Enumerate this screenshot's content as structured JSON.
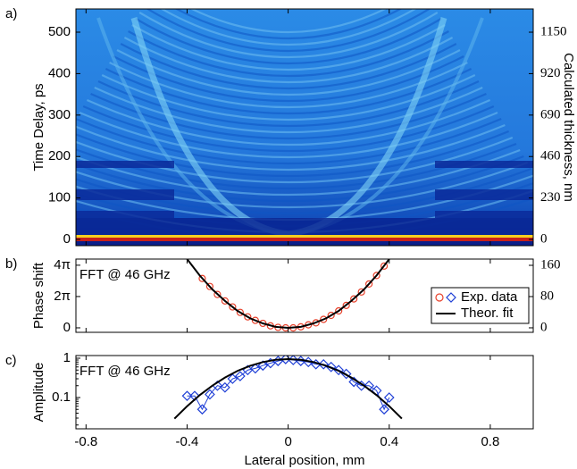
{
  "chart_data": [
    {
      "type": "heatmap",
      "panel_label": "a)",
      "ylabel": "Time Delay, ps",
      "y2label": "Calculated thickness, nm",
      "xlim": [
        -0.84,
        0.97
      ],
      "ylim": [
        -15,
        556
      ],
      "yticks": [
        0,
        100,
        200,
        300,
        400,
        500
      ],
      "y2lim": [
        -34.5,
        1279
      ],
      "y2ticks": [
        0,
        230,
        460,
        690,
        920,
        1150
      ]
    },
    {
      "type": "scatter",
      "panel_label": "b)",
      "annotation": "FFT @ 46 GHz",
      "ylabel": "Phase shift",
      "xlim": [
        -0.84,
        0.97
      ],
      "ylim": [
        -0.9,
        13.8
      ],
      "yticks": [
        0,
        {
          "value": 6.283,
          "label": "2π"
        },
        {
          "value": 12.566,
          "label": "4π"
        }
      ],
      "y2lim": [
        -11.5,
        176
      ],
      "y2ticks": [
        0,
        80,
        160
      ],
      "legend": "right",
      "series": [
        {
          "name": "Exp. data",
          "color": "#e8402a",
          "marker": "circle",
          "line": false,
          "x": [
            -0.34,
            -0.31,
            -0.28,
            -0.25,
            -0.22,
            -0.19,
            -0.16,
            -0.13,
            -0.1,
            -0.07,
            -0.04,
            -0.01,
            0.02,
            0.05,
            0.08,
            0.11,
            0.14,
            0.17,
            0.2,
            0.23,
            0.26,
            0.29,
            0.32,
            0.35,
            0.38
          ],
          "values": [
            9.9,
            8.3,
            6.7,
            5.4,
            4.2,
            3.1,
            2.2,
            1.5,
            0.9,
            0.4,
            0.1,
            0,
            0,
            0.2,
            0.6,
            1.0,
            1.7,
            2.5,
            3.4,
            4.5,
            5.8,
            7.2,
            8.8,
            10.5,
            12.4
          ]
        },
        {
          "name": "Theor. fit",
          "color": "#000000",
          "marker": "none",
          "line": true,
          "x": [
            -0.4,
            -0.35,
            -0.3,
            -0.25,
            -0.2,
            -0.15,
            -0.1,
            -0.05,
            0,
            0.05,
            0.1,
            0.15,
            0.2,
            0.25,
            0.3,
            0.35,
            0.4
          ],
          "values": [
            13.8,
            10.5,
            7.7,
            5.4,
            3.4,
            1.9,
            0.9,
            0.2,
            0,
            0.2,
            0.9,
            1.9,
            3.4,
            5.4,
            7.7,
            10.5,
            13.8
          ]
        }
      ]
    },
    {
      "type": "scatter",
      "panel_label": "c)",
      "annotation": "FFT @ 46 GHz",
      "ylabel": "Amplitude",
      "xlabel": "Lateral position, mm",
      "xlim": [
        -0.84,
        0.97
      ],
      "xticks": [
        -0.8,
        -0.4,
        0,
        0.4,
        0.8
      ],
      "ylim": [
        0.016,
        1.17
      ],
      "yticks": [
        0.1,
        1
      ],
      "log_y": true,
      "series": [
        {
          "color": "#1f3fd6",
          "marker": "diamond",
          "line": true,
          "x": [
            -0.4,
            -0.37,
            -0.34,
            -0.31,
            -0.28,
            -0.25,
            -0.22,
            -0.19,
            -0.16,
            -0.13,
            -0.1,
            -0.07,
            -0.04,
            -0.01,
            0.02,
            0.05,
            0.08,
            0.11,
            0.14,
            0.17,
            0.2,
            0.23,
            0.26,
            0.29,
            0.32,
            0.35,
            0.38,
            0.4
          ],
          "values": [
            0.11,
            0.11,
            0.05,
            0.12,
            0.2,
            0.18,
            0.3,
            0.35,
            0.5,
            0.55,
            0.65,
            0.75,
            0.85,
            0.95,
            0.9,
            0.85,
            0.8,
            0.7,
            0.7,
            0.6,
            0.5,
            0.4,
            0.25,
            0.2,
            0.2,
            0.15,
            0.05,
            0.1
          ]
        },
        {
          "color": "#000000",
          "marker": "none",
          "line": true,
          "x": [
            -0.45,
            -0.4,
            -0.35,
            -0.3,
            -0.25,
            -0.2,
            -0.15,
            -0.1,
            -0.05,
            0,
            0.05,
            0.1,
            0.15,
            0.2,
            0.25,
            0.3,
            0.35,
            0.4,
            0.45
          ],
          "values": [
            0.029,
            0.06,
            0.115,
            0.201,
            0.323,
            0.477,
            0.645,
            0.8,
            0.91,
            0.95,
            0.91,
            0.8,
            0.645,
            0.477,
            0.323,
            0.201,
            0.115,
            0.06,
            0.029
          ]
        }
      ]
    }
  ]
}
